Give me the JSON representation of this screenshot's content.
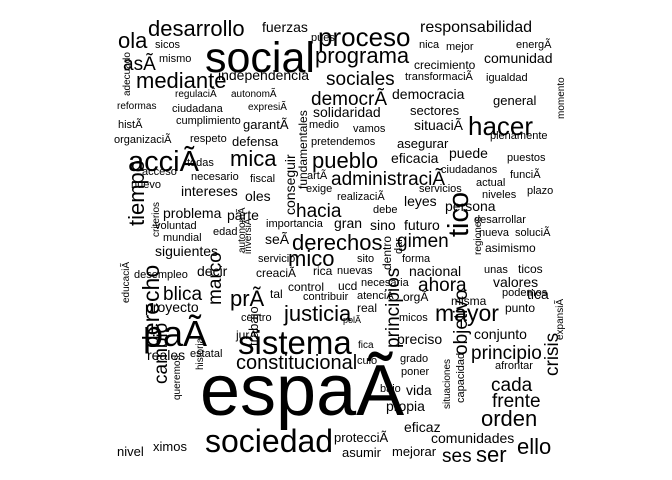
{
  "words": [
    [
      "españa",
      10
    ],
    [
      "social",
      6
    ],
    [
      "sociedad",
      4.5
    ],
    [
      "sistema",
      4.6
    ],
    [
      "pa",
      5
    ],
    [
      "pr",
      3
    ],
    [
      "desarrollo",
      3
    ],
    [
      "proceso",
      3.6
    ],
    [
      "programa",
      3
    ],
    [
      "hacer",
      3.6
    ],
    [
      "mica",
      3
    ],
    [
      "acci",
      4
    ],
    [
      "pueblo",
      3
    ],
    [
      "derechos",
      3
    ],
    [
      "tico",
      4
    ],
    [
      "justicia",
      3
    ],
    [
      "mayor",
      3.2
    ],
    [
      "derecho",
      3.2
    ],
    [
      "orden",
      3
    ],
    [
      "ello",
      3
    ],
    [
      "ser",
      3
    ],
    [
      "ses",
      2.6
    ],
    [
      "frente",
      2.6
    ],
    [
      "cada",
      2.6
    ],
    [
      "crisis",
      2.6
    ],
    [
      "tiempo",
      3
    ],
    [
      "mediante",
      3
    ],
    [
      "ola",
      3
    ],
    [
      "as",
      2.6
    ],
    [
      "sociales",
      2.6
    ],
    [
      "democr",
      2.6
    ],
    [
      "administraci",
      2.6
    ],
    [
      "constitucional",
      2.8
    ],
    [
      "mico",
      3
    ],
    [
      "hacia",
      2.6
    ],
    [
      "marco",
      2.6
    ],
    [
      "blica",
      2.6
    ],
    [
      "cambio",
      2.6
    ],
    [
      "principios",
      2.6
    ],
    [
      "objetivo",
      2.6
    ],
    [
      "principio",
      2.6
    ],
    [
      "gimen",
      2.6
    ],
    [
      "ahora",
      2.6
    ],
    [
      "fuerzas",
      2
    ],
    [
      "responsabilidad",
      2.2
    ],
    [
      "comunidad",
      2
    ],
    [
      "democracia",
      2
    ],
    [
      "independencia",
      2
    ],
    [
      "solidaridad",
      2
    ],
    [
      "situaci",
      2
    ],
    [
      "puede",
      2
    ],
    [
      "eficacia",
      2
    ],
    [
      "intereses",
      2
    ],
    [
      "oles",
      2
    ],
    [
      "problema",
      2
    ],
    [
      "siguientes",
      2
    ],
    [
      "proyecto",
      2
    ],
    [
      "reales",
      2
    ],
    [
      "preciso",
      2
    ],
    [
      "conjunto",
      2
    ],
    [
      "propia",
      2
    ],
    [
      "vida",
      2
    ],
    [
      "eficaz",
      2
    ],
    [
      "comunidades",
      2
    ],
    [
      "mejorar",
      1.8
    ],
    [
      "asumir",
      1.8
    ],
    [
      "protecci",
      1.8
    ],
    [
      "nivel",
      1.8
    ],
    [
      "ximos",
      1.8
    ],
    [
      "persona",
      2
    ],
    [
      "leyes",
      2
    ],
    [
      "futuro",
      2
    ],
    [
      "nacional",
      2
    ],
    [
      "valores",
      2
    ],
    [
      "tica",
      2
    ],
    [
      "decir",
      2
    ],
    [
      "parte",
      2
    ],
    [
      "gran",
      2
    ],
    [
      "sino",
      2
    ],
    [
      "conseguir",
      2
    ],
    [
      "fundamentales",
      1.7
    ],
    [
      "sectores",
      1.8
    ],
    [
      "general",
      1.8
    ],
    [
      "asegurar",
      1.8
    ],
    [
      "defensa",
      1.8
    ],
    [
      "garant",
      1.8
    ],
    [
      "mejor",
      1.5
    ],
    [
      "nica",
      1.5
    ],
    [
      "crecimiento",
      1.6
    ],
    [
      "transformaci",
      1.5
    ],
    [
      "igualdad",
      1.5
    ],
    [
      "energ",
      1.5
    ],
    [
      "sicos",
      1.5
    ],
    [
      "mismo",
      1.5
    ],
    [
      "adecuado",
      1.4
    ],
    [
      "regulaci",
      1.4
    ],
    [
      "autonom",
      1.4
    ],
    [
      "expresi",
      1.4
    ],
    [
      "reformas",
      1.4
    ],
    [
      "ciudadana",
      1.5
    ],
    [
      "cumplimiento",
      1.5
    ],
    [
      "hist",
      1.5
    ],
    [
      "medio",
      1.5
    ],
    [
      "vamos",
      1.5
    ],
    [
      "organizaci",
      1.5
    ],
    [
      "respeto",
      1.5
    ],
    [
      "pretendemos",
      1.5
    ],
    [
      "plenamente",
      1.5
    ],
    [
      "momento",
      1.4
    ],
    [
      "todas",
      1.5
    ],
    [
      "necesario",
      1.5
    ],
    [
      "acceso",
      1.5
    ],
    [
      "fiscal",
      1.5
    ],
    [
      "nuevo",
      1.5
    ],
    [
      "art",
      1.5
    ],
    [
      "exige",
      1.5
    ],
    [
      "realizaci",
      1.5
    ],
    [
      "ciudadanos",
      1.5
    ],
    [
      "servicios",
      1.5
    ],
    [
      "actual",
      1.5
    ],
    [
      "niveles",
      1.5
    ],
    [
      "funci",
      1.5
    ],
    [
      "puestos",
      1.5
    ],
    [
      "plazo",
      1.5
    ],
    [
      "criterios",
      1.4
    ],
    [
      "voluntad",
      1.5
    ],
    [
      "mundial",
      1.5
    ],
    [
      "edad",
      1.5
    ],
    [
      "importancia",
      1.5
    ],
    [
      "debe",
      1.5
    ],
    [
      "desarrollar",
      1.5
    ],
    [
      "nueva",
      1.5
    ],
    [
      "soluci",
      1.5
    ],
    [
      "asimismo",
      1.7
    ],
    [
      "desempleo",
      1.5
    ],
    [
      "servicio",
      1.5
    ],
    [
      "creaci",
      1.7
    ],
    [
      "rica",
      1.7
    ],
    [
      "nuevas",
      1.5
    ],
    [
      "sito",
      1.5
    ],
    [
      "forma",
      1.5
    ],
    [
      "unas",
      1.5
    ],
    [
      "ticos",
      1.7
    ],
    [
      "control",
      1.6
    ],
    [
      "ucd",
      1.6
    ],
    [
      "necesaria",
      1.5
    ],
    [
      "contribuir",
      1.5
    ],
    [
      "atenci",
      1.5
    ],
    [
      "misma",
      1.6
    ],
    [
      "podemos",
      1.5
    ],
    [
      "punto",
      1.6
    ],
    [
      "real",
      1.7
    ],
    [
      "pol",
      1.3
    ],
    [
      "micos",
      1.5
    ],
    [
      "centro",
      1.5
    ],
    [
      "jur",
      1.6
    ],
    [
      "tal",
      1.6
    ],
    [
      "trabajo",
      1.8
    ],
    [
      "estatal",
      1.5
    ],
    [
      "queremos",
      1.4
    ],
    [
      "historia",
      1.4
    ],
    [
      "fica",
      1.4
    ],
    [
      "culo",
      1.5
    ],
    [
      "grado",
      1.5
    ],
    [
      "poner",
      1.5
    ],
    [
      "afrontar",
      1.5
    ],
    [
      "bajo",
      1.5
    ],
    [
      "situaciones",
      1.4
    ],
    [
      "capacidad",
      1.5
    ],
    [
      "dentro",
      1.7
    ],
    [
      "regiones",
      1.4
    ],
    [
      "autonom2",
      1.4
    ],
    [
      "inversi",
      1.4
    ],
    [
      "dar",
      1.5
    ],
    [
      "educaci",
      1.4
    ],
    [
      "expansi",
      1.4
    ],
    [
      "orga",
      1.7
    ],
    [
      "se",
      2
    ],
    [
      "sicosb",
      1
    ],
    [
      "pues",
      1.5
    ]
  ]
}
